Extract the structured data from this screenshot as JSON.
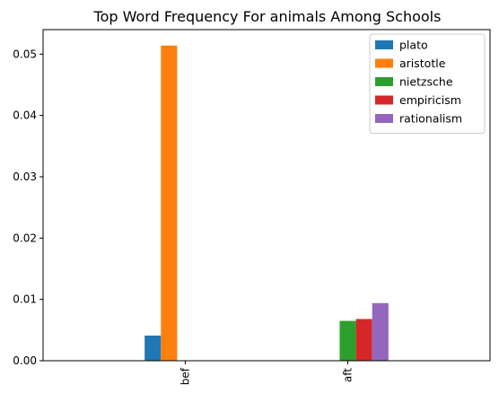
{
  "chart_data": {
    "type": "bar",
    "title": "Top Word Frequency For animals Among Schools",
    "xlabel": "",
    "ylabel": "",
    "categories": [
      "bef",
      "aft"
    ],
    "series": [
      {
        "name": "plato",
        "color": "#1f77b4",
        "values": [
          0.0041,
          0.0
        ]
      },
      {
        "name": "aristotle",
        "color": "#ff7f0e",
        "values": [
          0.0514,
          0.0
        ]
      },
      {
        "name": "nietzsche",
        "color": "#2ca02c",
        "values": [
          0.0,
          0.0065
        ]
      },
      {
        "name": "empiricism",
        "color": "#d62728",
        "values": [
          0.0,
          0.0068
        ]
      },
      {
        "name": "rationalism",
        "color": "#9467bd",
        "values": [
          0.0,
          0.0094
        ]
      }
    ],
    "yticks": [
      "0.00",
      "0.01",
      "0.02",
      "0.03",
      "0.04",
      "0.05"
    ],
    "ytick_values": [
      0.0,
      0.01,
      0.02,
      0.03,
      0.04,
      0.05
    ],
    "ylim": [
      0,
      0.054
    ],
    "grid": false,
    "legend_position": "top-right"
  }
}
